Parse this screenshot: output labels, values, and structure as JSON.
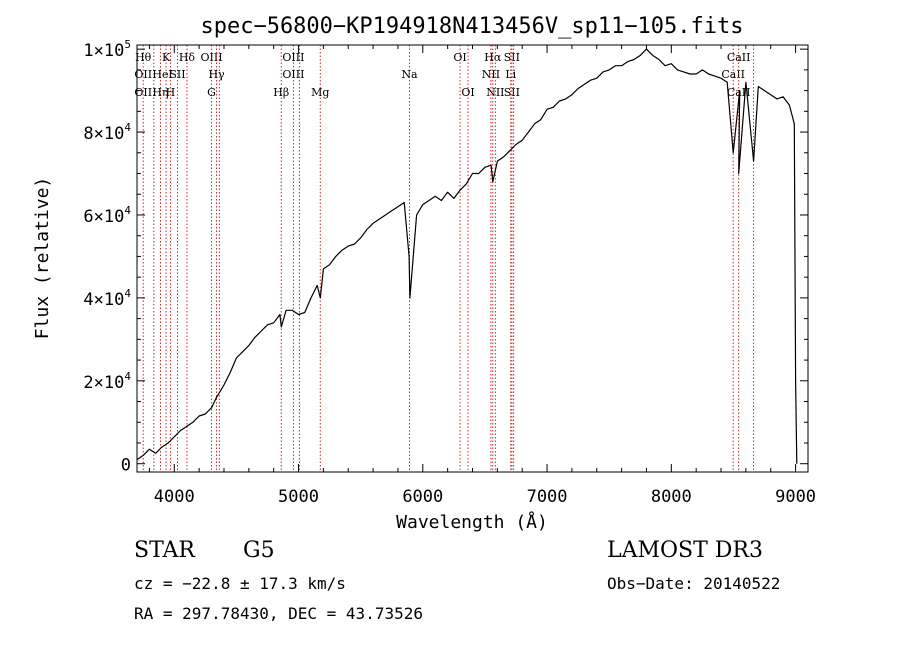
{
  "chart_data": {
    "type": "line",
    "title": "spec−56800−KP194918N413456V_sp11−105.fits",
    "xlabel": "Wavelength (Å)",
    "ylabel": "Flux (relative)",
    "xlim": [
      3700,
      9100
    ],
    "ylim": [
      -2000,
      101000
    ],
    "x_ticks": [
      4000,
      5000,
      6000,
      7000,
      8000,
      9000
    ],
    "y_ticks": [
      {
        "value": 0,
        "mantissa": "0",
        "exp": ""
      },
      {
        "value": 20000,
        "mantissa": "2×10",
        "exp": "4"
      },
      {
        "value": 40000,
        "mantissa": "4×10",
        "exp": "4"
      },
      {
        "value": 60000,
        "mantissa": "6×10",
        "exp": "4"
      },
      {
        "value": 80000,
        "mantissa": "8×10",
        "exp": "4"
      },
      {
        "value": 100000,
        "mantissa": "1×10",
        "exp": "5"
      }
    ],
    "series": [
      {
        "name": "flux",
        "x": [
          3700,
          3750,
          3800,
          3850,
          3900,
          3950,
          4000,
          4050,
          4100,
          4150,
          4200,
          4250,
          4300,
          4340,
          4400,
          4450,
          4500,
          4550,
          4600,
          4650,
          4700,
          4750,
          4800,
          4850,
          4861,
          4900,
          4950,
          5000,
          5050,
          5100,
          5150,
          5175,
          5200,
          5250,
          5300,
          5350,
          5400,
          5450,
          5500,
          5550,
          5600,
          5650,
          5700,
          5750,
          5800,
          5850,
          5890,
          5896,
          5950,
          6000,
          6050,
          6100,
          6150,
          6200,
          6250,
          6300,
          6350,
          6400,
          6450,
          6500,
          6550,
          6563,
          6600,
          6650,
          6700,
          6750,
          6800,
          6850,
          6900,
          6950,
          7000,
          7050,
          7100,
          7150,
          7200,
          7250,
          7300,
          7350,
          7400,
          7450,
          7500,
          7550,
          7600,
          7650,
          7700,
          7750,
          7800,
          7850,
          7900,
          7950,
          8000,
          8050,
          8100,
          8150,
          8200,
          8250,
          8300,
          8350,
          8400,
          8450,
          8498,
          8550,
          8542,
          8600,
          8662,
          8700,
          8750,
          8800,
          8850,
          8900,
          8950,
          8990,
          9000,
          9010
        ],
        "values": [
          1000,
          2000,
          3500,
          2500,
          4000,
          5000,
          6500,
          8000,
          9000,
          10000,
          11500,
          12000,
          13500,
          16000,
          19000,
          22000,
          25500,
          27000,
          28500,
          30500,
          32000,
          33500,
          34000,
          36000,
          33000,
          37000,
          37000,
          36000,
          36500,
          40000,
          43000,
          40000,
          47000,
          48000,
          50000,
          51500,
          52500,
          53000,
          54500,
          56500,
          58000,
          59000,
          60000,
          61000,
          62000,
          63000,
          50000,
          40000,
          60000,
          62500,
          63500,
          64500,
          63500,
          65500,
          64000,
          66000,
          67500,
          70000,
          70000,
          71500,
          72000,
          68000,
          73000,
          74000,
          75500,
          77000,
          78000,
          80000,
          82000,
          83000,
          85500,
          86000,
          87500,
          88000,
          89000,
          90500,
          91500,
          92500,
          93000,
          94500,
          95000,
          96000,
          96000,
          97000,
          97500,
          98500,
          100000,
          98500,
          97500,
          96000,
          96500,
          95000,
          94500,
          94000,
          94000,
          95000,
          94000,
          93500,
          93000,
          92000,
          75000,
          90000,
          70000,
          92000,
          73000,
          91000,
          90000,
          89000,
          88000,
          88500,
          86500,
          82000,
          20000,
          0
        ]
      }
    ],
    "lines": [
      {
        "x": 3750,
        "labels": [
          {
            "text": "Hθ",
            "row": 1
          },
          {
            "text": "OII",
            "row": 2
          },
          {
            "text": "OII",
            "row": 3
          }
        ]
      },
      {
        "x": 3835,
        "labels": [
          {
            "text": "",
            "row": 1
          }
        ]
      },
      {
        "x": 3889,
        "labels": [
          {
            "text": "He",
            "row": 2
          },
          {
            "text": "Hη",
            "row": 3
          }
        ]
      },
      {
        "x": 3934,
        "labels": [
          {
            "text": "K",
            "row": 1
          }
        ]
      },
      {
        "x": 3969,
        "labels": [
          {
            "text": "I",
            "row": 2
          },
          {
            "text": "H",
            "row": 3
          }
        ]
      },
      {
        "x": 4026,
        "labels": [
          {
            "text": "SII",
            "row": 2
          }
        ]
      },
      {
        "x": 4102,
        "labels": [
          {
            "text": "Hδ",
            "row": 1
          }
        ]
      },
      {
        "x": 4300,
        "labels": [
          {
            "text": "OIII",
            "row": 1
          },
          {
            "text": "G",
            "row": 3
          }
        ]
      },
      {
        "x": 4340,
        "labels": [
          {
            "text": "Hγ",
            "row": 2
          }
        ]
      },
      {
        "x": 4363,
        "labels": []
      },
      {
        "x": 4861,
        "labels": [
          {
            "text": "Hβ",
            "row": 3
          }
        ]
      },
      {
        "x": 4959,
        "labels": [
          {
            "text": "OIII",
            "row": 1
          },
          {
            "text": "OIII",
            "row": 2
          }
        ]
      },
      {
        "x": 5007,
        "labels": []
      },
      {
        "x": 5175,
        "labels": [
          {
            "text": "Mg",
            "row": 3
          }
        ]
      },
      {
        "x": 5893,
        "labels": [
          {
            "text": "Na",
            "row": 2
          }
        ]
      },
      {
        "x": 6300,
        "labels": [
          {
            "text": "OI",
            "row": 1
          }
        ]
      },
      {
        "x": 6364,
        "labels": [
          {
            "text": "OI",
            "row": 3
          }
        ]
      },
      {
        "x": 6548,
        "labels": [
          {
            "text": "NII",
            "row": 2
          }
        ]
      },
      {
        "x": 6563,
        "labels": [
          {
            "text": "Hα",
            "row": 1
          }
        ]
      },
      {
        "x": 6584,
        "labels": [
          {
            "text": "NII",
            "row": 3
          }
        ]
      },
      {
        "x": 6708,
        "labels": [
          {
            "text": "Li",
            "row": 2
          }
        ]
      },
      {
        "x": 6717,
        "labels": [
          {
            "text": "SII",
            "row": 1
          },
          {
            "text": "SII",
            "row": 3
          }
        ]
      },
      {
        "x": 6731,
        "labels": []
      },
      {
        "x": 8498,
        "labels": [
          {
            "text": "CaII",
            "row": 2
          }
        ]
      },
      {
        "x": 8542,
        "labels": [
          {
            "text": "CaII",
            "row": 1
          },
          {
            "text": "CaII",
            "row": 3
          }
        ]
      },
      {
        "x": 8662,
        "labels": []
      }
    ]
  },
  "info": {
    "object_type": "STAR",
    "subclass": "G5",
    "survey": "LAMOST DR3",
    "cz": "cz = −22.8 ± 17.3 km/s",
    "obs_date": "Obs−Date: 20140522",
    "coords": "RA = 297.78430, DEC =  43.73526"
  }
}
